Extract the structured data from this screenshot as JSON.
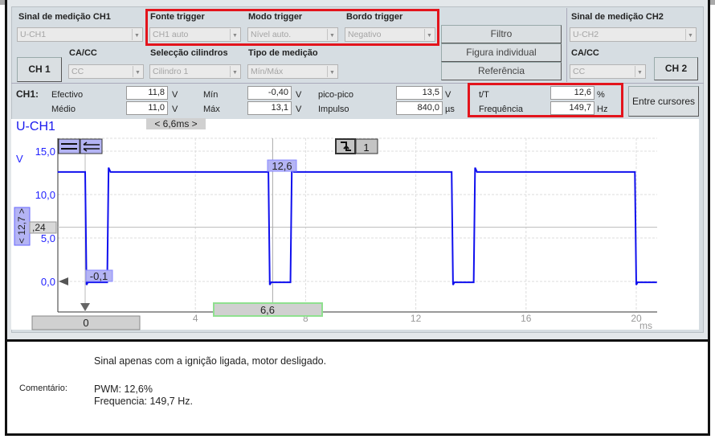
{
  "top": {
    "ch1_signal_label": "Sinal de medição CH1",
    "ch1_signal_value": "U-CH1",
    "trigger_source_label": "Fonte trigger",
    "trigger_source_value": "CH1 auto",
    "trigger_mode_label": "Modo trigger",
    "trigger_mode_value": "Nível auto.",
    "trigger_edge_label": "Bordo trigger",
    "trigger_edge_value": "Negativo",
    "filter_button": "Filtro",
    "single_figure_button": "Figura individual",
    "reference_button": "Referência",
    "ch2_signal_label": "Sinal de medição CH2",
    "ch2_signal_value": "U-CH2",
    "ch1_tab": "CH 1",
    "ch1_coupling_label": "CA/CC",
    "ch1_coupling_value": "CC",
    "cylinder_label": "Selecção cilindros",
    "cylinder_value": "Cilindro 1",
    "measure_type_label": "Tipo de medição",
    "measure_type_value": "Mín/Máx",
    "ch2_coupling_label": "CA/CC",
    "ch2_coupling_value": "CC",
    "ch2_tab": "CH 2"
  },
  "measurements": {
    "channel": "CH1:",
    "effective_label": "Efectivo",
    "effective_value": "11,8",
    "effective_unit": "V",
    "mean_label": "Médio",
    "mean_value": "11,0",
    "mean_unit": "V",
    "min_label": "Mín",
    "min_value": "-0,40",
    "min_unit": "V",
    "max_label": "Máx",
    "max_value": "13,1",
    "max_unit": "V",
    "pp_label": "pico-pico",
    "pp_value": "13,5",
    "pp_unit": "V",
    "pulse_label": "Impulso",
    "pulse_value": "840,0",
    "pulse_unit": "µs",
    "duty_label": "t/T",
    "duty_value": "12,6",
    "duty_unit": "%",
    "freq_label": "Frequência",
    "freq_value": "149,7",
    "freq_unit": "Hz",
    "between_cursors_button": "Entre cursores"
  },
  "chart_data": {
    "type": "line",
    "title": "U-CH1",
    "cursor_delta": "< 6,6ms >",
    "ylabel": "V",
    "xlabel": "ms",
    "xlim": [
      -1,
      20.75
    ],
    "ylim": [
      -3.5,
      17
    ],
    "y_ticks": [
      {
        "v": 15,
        "t": "15,0"
      },
      {
        "v": 10,
        "t": "10,0"
      },
      {
        "v": 5,
        "t": "5,0"
      },
      {
        "v": 0,
        "t": "0,0"
      }
    ],
    "x_ticks": [
      {
        "v": 0,
        "t": "0"
      },
      {
        "v": 4,
        "t": "4"
      },
      {
        "v": 8,
        "t": "8"
      },
      {
        "v": 12,
        "t": "12"
      },
      {
        "v": 16,
        "t": "16"
      },
      {
        "v": 20,
        "t": "20"
      }
    ],
    "grid": true,
    "line_color": "#1010ee",
    "series": [
      {
        "points": [
          [
            -1,
            12.6
          ],
          [
            0,
            12.6
          ],
          [
            0.05,
            -0.4
          ],
          [
            0.1,
            -0.1
          ],
          [
            0.8,
            -0.1
          ],
          [
            0.85,
            13.1
          ],
          [
            0.92,
            12.6
          ],
          [
            6.65,
            12.6
          ],
          [
            6.7,
            -0.4
          ],
          [
            6.75,
            -0.1
          ],
          [
            7.45,
            -0.1
          ],
          [
            7.5,
            13.1
          ],
          [
            7.57,
            12.6
          ],
          [
            13.3,
            12.6
          ],
          [
            13.35,
            -0.4
          ],
          [
            13.4,
            -0.1
          ],
          [
            14.1,
            -0.1
          ],
          [
            14.15,
            13.1
          ],
          [
            14.22,
            12.6
          ],
          [
            19.95,
            12.6
          ],
          [
            20.0,
            -0.4
          ],
          [
            20.05,
            -0.1
          ],
          [
            20.75,
            -0.1
          ]
        ]
      }
    ],
    "cursor_a": {
      "x": 0,
      "label": "0"
    },
    "cursor_b": {
      "x": 6.6,
      "label": "6,6"
    },
    "h_cursor": {
      "y": 6.24,
      "label": ",24"
    },
    "scale_badge": "< 12,7 >",
    "marker_high": "12,6",
    "marker_low": "-0,1",
    "trigger_channel": "1"
  },
  "comment": {
    "label": "Comentário:",
    "line1": "Sinal apenas com a ignição ligada, motor desligado.",
    "line2": "PWM: 12,6%",
    "line3": "Frequencia: 149,7 Hz."
  }
}
